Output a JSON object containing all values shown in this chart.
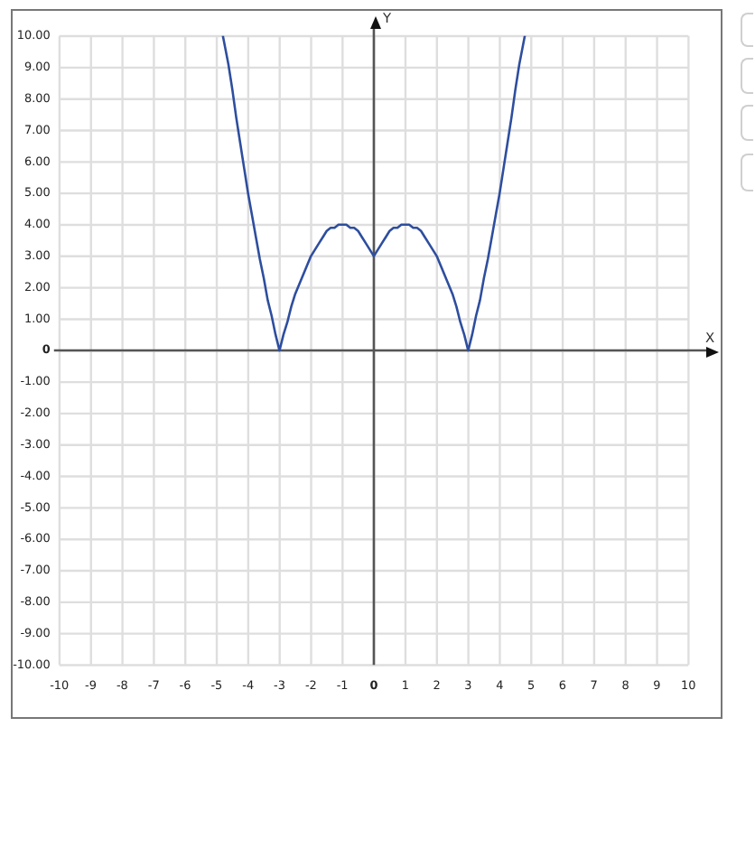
{
  "chart_data": {
    "type": "line",
    "x": [
      -4.8,
      -4.625,
      -4.5,
      -4.375,
      -4.25,
      -4.125,
      -4,
      -3.875,
      -3.75,
      -3.625,
      -3.5,
      -3.375,
      -3.25,
      -3.125,
      -3,
      -2.875,
      -2.75,
      -2.625,
      -2.5,
      -2.375,
      -2.25,
      -2.125,
      -2,
      -1.875,
      -1.75,
      -1.625,
      -1.5,
      -1.375,
      -1.25,
      -1.125,
      -1,
      -0.875,
      -0.75,
      -0.625,
      -0.5,
      -0.375,
      -0.25,
      -0.125,
      0,
      0.125,
      0.25,
      0.375,
      0.5,
      0.625,
      0.75,
      0.875,
      1,
      1.125,
      1.25,
      1.375,
      1.5,
      1.625,
      1.75,
      1.875,
      2,
      2.125,
      2.25,
      2.375,
      2.5,
      2.625,
      2.75,
      2.875,
      3,
      3.125,
      3.25,
      3.375,
      3.5,
      3.625,
      3.75,
      3.875,
      4,
      4.125,
      4.25,
      4.375,
      4.5,
      4.625,
      4.8
    ],
    "values": [
      10,
      9.1,
      8.3,
      7.4,
      6.6,
      5.8,
      5,
      4.3,
      3.6,
      2.9,
      2.3,
      1.6,
      1.1,
      0.5,
      0,
      0.5,
      0.9,
      1.4,
      1.8,
      2.1,
      2.4,
      2.7,
      3,
      3.2,
      3.4,
      3.6,
      3.8,
      3.9,
      3.9,
      4,
      4,
      4,
      3.9,
      3.9,
      3.8,
      3.6,
      3.4,
      3.2,
      3,
      3.2,
      3.4,
      3.6,
      3.8,
      3.9,
      3.9,
      4,
      4,
      4,
      3.9,
      3.9,
      3.8,
      3.6,
      3.4,
      3.2,
      3,
      2.7,
      2.4,
      2.1,
      1.8,
      1.4,
      0.9,
      0.5,
      0,
      0.5,
      1.1,
      1.6,
      2.3,
      2.9,
      3.6,
      4.3,
      5,
      5.8,
      6.6,
      7.4,
      8.3,
      9.1,
      10
    ],
    "color": "#2e4e9e",
    "line_style": "solid",
    "marker": "none",
    "xlabel": "X",
    "ylabel": "Y",
    "xlim": [
      -10,
      10
    ],
    "ylim": [
      -10,
      10
    ],
    "xticks": [
      -10,
      -9,
      -8,
      -7,
      -6,
      -5,
      -4,
      -3,
      -2,
      -1,
      0,
      1,
      2,
      3,
      4,
      5,
      6,
      7,
      8,
      9,
      10
    ],
    "yticks": [
      {
        "value": 10,
        "label": "10.00"
      },
      {
        "value": 9,
        "label": "9.00"
      },
      {
        "value": 8,
        "label": "8.00"
      },
      {
        "value": 7,
        "label": "7.00"
      },
      {
        "value": 6,
        "label": "6.00"
      },
      {
        "value": 5,
        "label": "5.00"
      },
      {
        "value": 4,
        "label": "4.00"
      },
      {
        "value": 3,
        "label": "3.00"
      },
      {
        "value": 2,
        "label": "2.00"
      },
      {
        "value": 1,
        "label": "1.00"
      },
      0,
      {
        "value": -1,
        "label": "-1.00"
      },
      {
        "value": -2,
        "label": "-2.00"
      },
      {
        "value": -3,
        "label": "-3.00"
      },
      {
        "value": -4,
        "label": "-4.00"
      },
      {
        "value": -5,
        "label": "-5.00"
      },
      {
        "value": -6,
        "label": "-6.00"
      },
      {
        "value": -7,
        "label": "-7.00"
      },
      {
        "value": -8,
        "label": "-8.00"
      },
      {
        "value": -9,
        "label": "-9.00"
      },
      {
        "value": -10,
        "label": "-10.00"
      }
    ],
    "grid": true,
    "legend": false
  }
}
